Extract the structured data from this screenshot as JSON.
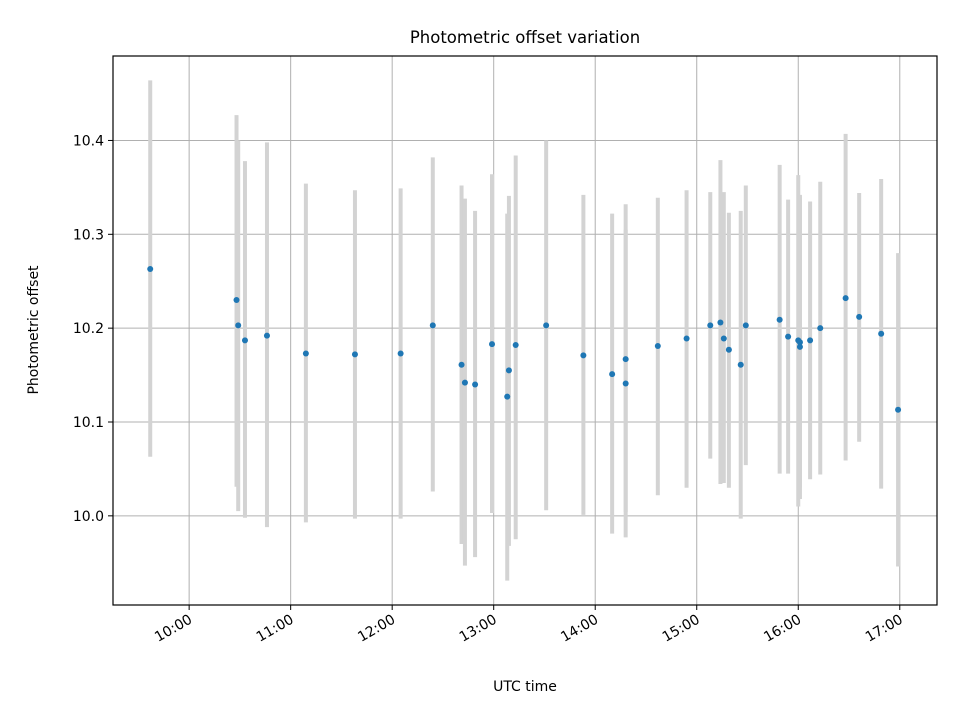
{
  "chart_data": {
    "type": "scatter",
    "title": "Photometric offset variation",
    "xlabel": "UTC time",
    "ylabel": "Photometric offset",
    "x_is_time": true,
    "xlim": [
      "09:15",
      "17:22"
    ],
    "ylim": [
      9.905,
      10.49
    ],
    "xticks": [
      "10:00",
      "11:00",
      "12:00",
      "13:00",
      "14:00",
      "15:00",
      "16:00",
      "17:00"
    ],
    "yticks": [
      10.0,
      10.1,
      10.2,
      10.3,
      10.4
    ],
    "ytick_labels": [
      "10.0",
      "10.1",
      "10.2",
      "10.3",
      "10.4"
    ],
    "grid": true,
    "point_color": "#1f77b4",
    "errorbar_color": "#d3d3d3",
    "points": [
      {
        "x": "09:37",
        "y": 10.263,
        "ylo": 10.063,
        "yhi": 10.464
      },
      {
        "x": "10:28",
        "y": 10.23,
        "ylo": 10.031,
        "yhi": 10.427
      },
      {
        "x": "10:29",
        "y": 10.203,
        "ylo": 10.005,
        "yhi": 10.4
      },
      {
        "x": "10:33",
        "y": 10.187,
        "ylo": 9.998,
        "yhi": 10.378
      },
      {
        "x": "10:46",
        "y": 10.192,
        "ylo": 9.988,
        "yhi": 10.398
      },
      {
        "x": "11:09",
        "y": 10.173,
        "ylo": 9.993,
        "yhi": 10.354
      },
      {
        "x": "11:38",
        "y": 10.172,
        "ylo": 9.997,
        "yhi": 10.347
      },
      {
        "x": "12:05",
        "y": 10.173,
        "ylo": 9.997,
        "yhi": 10.349
      },
      {
        "x": "12:24",
        "y": 10.203,
        "ylo": 10.026,
        "yhi": 10.382
      },
      {
        "x": "12:41",
        "y": 10.161,
        "ylo": 9.97,
        "yhi": 10.352
      },
      {
        "x": "12:43",
        "y": 10.142,
        "ylo": 9.947,
        "yhi": 10.338
      },
      {
        "x": "12:49",
        "y": 10.14,
        "ylo": 9.956,
        "yhi": 10.325
      },
      {
        "x": "12:59",
        "y": 10.183,
        "ylo": 10.003,
        "yhi": 10.364
      },
      {
        "x": "13:08",
        "y": 10.127,
        "ylo": 9.931,
        "yhi": 10.322
      },
      {
        "x": "13:09",
        "y": 10.155,
        "ylo": 9.968,
        "yhi": 10.341
      },
      {
        "x": "13:13",
        "y": 10.182,
        "ylo": 9.975,
        "yhi": 10.384
      },
      {
        "x": "13:31",
        "y": 10.203,
        "ylo": 10.006,
        "yhi": 10.4
      },
      {
        "x": "13:53",
        "y": 10.171,
        "ylo": 10.001,
        "yhi": 10.342
      },
      {
        "x": "14:10",
        "y": 10.151,
        "ylo": 9.981,
        "yhi": 10.322
      },
      {
        "x": "14:18",
        "y": 10.141,
        "ylo": 9.977,
        "yhi": 10.305
      },
      {
        "x": "14:18",
        "y": 10.167,
        "ylo": 10.004,
        "yhi": 10.332
      },
      {
        "x": "14:37",
        "y": 10.181,
        "ylo": 10.022,
        "yhi": 10.339
      },
      {
        "x": "14:54",
        "y": 10.189,
        "ylo": 10.03,
        "yhi": 10.347
      },
      {
        "x": "15:08",
        "y": 10.203,
        "ylo": 10.061,
        "yhi": 10.345
      },
      {
        "x": "15:14",
        "y": 10.206,
        "ylo": 10.034,
        "yhi": 10.379
      },
      {
        "x": "15:16",
        "y": 10.189,
        "ylo": 10.035,
        "yhi": 10.345
      },
      {
        "x": "15:19",
        "y": 10.177,
        "ylo": 10.03,
        "yhi": 10.323
      },
      {
        "x": "15:26",
        "y": 10.161,
        "ylo": 9.997,
        "yhi": 10.325
      },
      {
        "x": "15:29",
        "y": 10.203,
        "ylo": 10.054,
        "yhi": 10.352
      },
      {
        "x": "15:49",
        "y": 10.209,
        "ylo": 10.045,
        "yhi": 10.374
      },
      {
        "x": "15:54",
        "y": 10.191,
        "ylo": 10.045,
        "yhi": 10.337
      },
      {
        "x": "16:00",
        "y": 10.187,
        "ylo": 10.01,
        "yhi": 10.363
      },
      {
        "x": "16:01",
        "y": 10.18,
        "ylo": 10.018,
        "yhi": 10.342
      },
      {
        "x": "16:01",
        "y": 10.185,
        "ylo": 10.03,
        "yhi": 10.34
      },
      {
        "x": "16:07",
        "y": 10.187,
        "ylo": 10.039,
        "yhi": 10.335
      },
      {
        "x": "16:13",
        "y": 10.2,
        "ylo": 10.044,
        "yhi": 10.356
      },
      {
        "x": "16:28",
        "y": 10.232,
        "ylo": 10.059,
        "yhi": 10.407
      },
      {
        "x": "16:36",
        "y": 10.212,
        "ylo": 10.079,
        "yhi": 10.344
      },
      {
        "x": "16:49",
        "y": 10.194,
        "ylo": 10.029,
        "yhi": 10.359
      },
      {
        "x": "16:59",
        "y": 10.113,
        "ylo": 9.946,
        "yhi": 10.28
      }
    ]
  }
}
